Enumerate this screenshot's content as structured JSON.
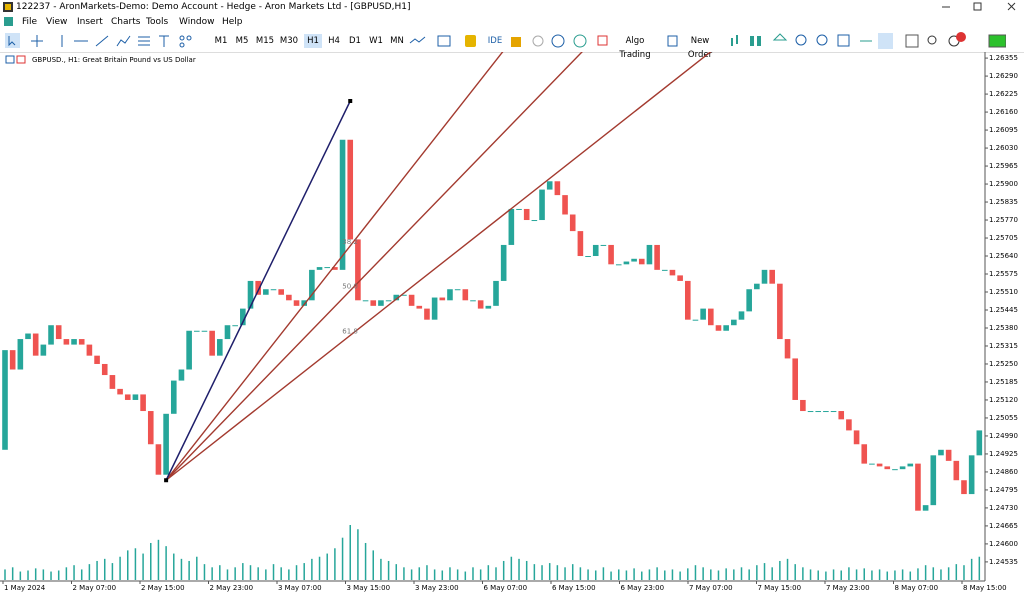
{
  "window": {
    "title": "122237 - AronMarkets-Demo: Demo Account - Hedge - Aron Markets Ltd - [GBPUSD,H1]"
  },
  "menu": [
    "File",
    "View",
    "Insert",
    "Charts",
    "Tools",
    "Window",
    "Help"
  ],
  "toolbar": {
    "timeframes": [
      "M1",
      "M5",
      "M15",
      "M30",
      "H1",
      "H4",
      "D1",
      "W1",
      "MN"
    ],
    "active_timeframe": "H1",
    "ide": "IDE",
    "algo_trading": "Algo Trading",
    "new_order": "New Order",
    "notification_count": "1"
  },
  "chart_data": {
    "type": "candlestick",
    "title": "GBPUSD., H1:  Great Britain Pound vs US Dollar",
    "up_color": "#26a69a",
    "down_color": "#ef5350",
    "volume_color": "#26a69a",
    "open": [
      1.2494,
      1.253,
      1.2523,
      1.2534,
      1.2536,
      1.2528,
      1.2532,
      1.2539,
      1.2534,
      1.2532,
      1.2534,
      1.2532,
      1.2528,
      1.2525,
      1.2521,
      1.2516,
      1.2514,
      1.2512,
      1.2514,
      1.2508,
      1.2496,
      1.2485,
      1.2507,
      1.2519,
      1.2523,
      1.2537,
      1.2537,
      1.2537,
      1.2528,
      1.2534,
      1.2539,
      1.2539,
      1.2545,
      1.2555,
      1.255,
      1.2552,
      1.2552,
      1.255,
      1.2548,
      1.2546,
      1.2548,
      1.2559,
      1.256,
      1.256,
      1.2559,
      1.2606,
      1.257,
      1.2548,
      1.2548,
      1.2546,
      1.2548,
      1.2548,
      1.255,
      1.255,
      1.2546,
      1.2545,
      1.2541,
      1.2549,
      1.2548,
      1.2552,
      1.2552,
      1.2548,
      1.2548,
      1.2545,
      1.2546,
      1.2555,
      1.2568,
      1.2581,
      1.2581,
      1.2577,
      1.2577,
      1.2588,
      1.2591,
      1.2586,
      1.2579,
      1.2573,
      1.2564,
      1.2564,
      1.2568,
      1.2568,
      1.2561,
      1.2561,
      1.2562,
      1.2563,
      1.2561,
      1.2568,
      1.2559,
      1.2559,
      1.2557,
      1.2555,
      1.2541,
      1.2541,
      1.2545,
      1.2539,
      1.2537,
      1.2539,
      1.2541,
      1.2544,
      1.2552,
      1.2554,
      1.2559,
      1.2554,
      1.2534,
      1.2527,
      1.2512,
      1.2508,
      1.2508,
      1.2508,
      1.2508,
      1.2508,
      1.2505,
      1.2501,
      1.2496,
      1.2489,
      1.2489,
      1.2488,
      1.2487,
      1.2487,
      1.2488,
      1.2489,
      1.2472,
      1.2474,
      1.2492,
      1.2494,
      1.249,
      1.2483,
      1.2478,
      1.2492
    ],
    "close": [
      1.253,
      1.2523,
      1.2534,
      1.2536,
      1.2528,
      1.2532,
      1.2539,
      1.2534,
      1.2532,
      1.2534,
      1.2532,
      1.2528,
      1.2525,
      1.2521,
      1.2516,
      1.2514,
      1.2512,
      1.2514,
      1.2508,
      1.2496,
      1.2485,
      1.2507,
      1.2519,
      1.2523,
      1.2537,
      1.2537,
      1.2537,
      1.2528,
      1.2534,
      1.2539,
      1.2539,
      1.2545,
      1.2555,
      1.255,
      1.2552,
      1.2552,
      1.255,
      1.2548,
      1.2546,
      1.2548,
      1.2559,
      1.256,
      1.256,
      1.2559,
      1.2606,
      1.257,
      1.2548,
      1.2548,
      1.2546,
      1.2548,
      1.2548,
      1.255,
      1.255,
      1.2546,
      1.2545,
      1.2541,
      1.2549,
      1.2548,
      1.2552,
      1.2552,
      1.2548,
      1.2548,
      1.2545,
      1.2546,
      1.2555,
      1.2568,
      1.2581,
      1.2581,
      1.2577,
      1.2577,
      1.2588,
      1.2591,
      1.2586,
      1.2579,
      1.2573,
      1.2564,
      1.2564,
      1.2568,
      1.2568,
      1.2561,
      1.2561,
      1.2562,
      1.2563,
      1.2561,
      1.2568,
      1.2559,
      1.2559,
      1.2557,
      1.2555,
      1.2541,
      1.2541,
      1.2545,
      1.2539,
      1.2537,
      1.2539,
      1.2541,
      1.2544,
      1.2552,
      1.2554,
      1.2559,
      1.2554,
      1.2534,
      1.2527,
      1.2512,
      1.2508,
      1.2508,
      1.2508,
      1.2508,
      1.2508,
      1.2505,
      1.2501,
      1.2496,
      1.2489,
      1.2489,
      1.2488,
      1.2487,
      1.2487,
      1.2488,
      1.2489,
      1.2472,
      1.2474,
      1.2492,
      1.2494,
      1.249,
      1.2483,
      1.2478,
      1.2492,
      1.2501
    ],
    "volumes": [
      10,
      12,
      8,
      9,
      11,
      10,
      8,
      9,
      12,
      14,
      10,
      15,
      18,
      20,
      16,
      22,
      28,
      30,
      25,
      35,
      38,
      32,
      25,
      20,
      18,
      22,
      15,
      12,
      14,
      10,
      12,
      16,
      14,
      12,
      10,
      15,
      12,
      10,
      14,
      16,
      20,
      22,
      25,
      30,
      40,
      52,
      48,
      35,
      28,
      20,
      18,
      15,
      12,
      10,
      12,
      14,
      10,
      9,
      12,
      10,
      8,
      12,
      10,
      14,
      12,
      18,
      22,
      20,
      18,
      15,
      14,
      16,
      14,
      12,
      15,
      12,
      10,
      9,
      12,
      8,
      10,
      9,
      11,
      8,
      10,
      12,
      9,
      10,
      8,
      11,
      14,
      12,
      10,
      9,
      11,
      10,
      12,
      10,
      14,
      16,
      12,
      18,
      20,
      15,
      12,
      10,
      9,
      8,
      10,
      9,
      12,
      10,
      11,
      9,
      10,
      8,
      9,
      10,
      8,
      11,
      14,
      12,
      10,
      12,
      15,
      14,
      20,
      22
    ],
    "ylim": [
      1.24466,
      1.26377
    ],
    "yticks": [
      1.26355,
      {
        "value": 1.2629,
        "label": "1.26290"
      },
      1.26225,
      {
        "value": 1.2616,
        "label": "1.26160"
      },
      1.26095,
      {
        "value": 1.2603,
        "label": "1.26030"
      },
      1.25965,
      {
        "value": 1.259,
        "label": "1.25900"
      },
      1.25835,
      {
        "value": 1.2577,
        "label": "1.25770"
      },
      1.25705,
      {
        "value": 1.2564,
        "label": "1.25640"
      },
      1.25575,
      {
        "value": 1.2551,
        "label": "1.25510"
      },
      1.25445,
      {
        "value": 1.2538,
        "label": "1.25380"
      },
      1.25315,
      {
        "value": 1.2525,
        "label": "1.25250"
      },
      1.25185,
      {
        "value": 1.2512,
        "label": "1.25120"
      },
      1.25055,
      {
        "value": 1.2499,
        "label": "1.24990"
      },
      1.24925,
      {
        "value": 1.2486,
        "label": "1.24860"
      },
      1.24795,
      {
        "value": 1.2473,
        "label": "1.24730"
      },
      1.24665,
      {
        "value": 1.246,
        "label": "1.24600"
      },
      1.24535
    ],
    "x_labels": [
      "1 May 2024",
      "2 May 07:00",
      "2 May 15:00",
      "2 May 23:00",
      "3 May 07:00",
      "3 May 15:00",
      "3 May 23:00",
      "6 May 07:00",
      "6 May 15:00",
      "6 May 23:00",
      "7 May 07:00",
      "7 May 15:00",
      "7 May 23:00",
      "8 May 07:00",
      "8 May 15:00"
    ],
    "fib_fan": {
      "start": {
        "index": 21,
        "price": 1.2483
      },
      "end": {
        "index": 45,
        "price": 1.262
      },
      "trend_color": "#1f1f6b",
      "fan_color": "#a33a2f",
      "levels": [
        {
          "value": 38.2,
          "label": "38.2"
        },
        {
          "value": 50,
          "label": "50.0"
        },
        {
          "value": 61.8,
          "label": "61.8"
        }
      ]
    }
  }
}
